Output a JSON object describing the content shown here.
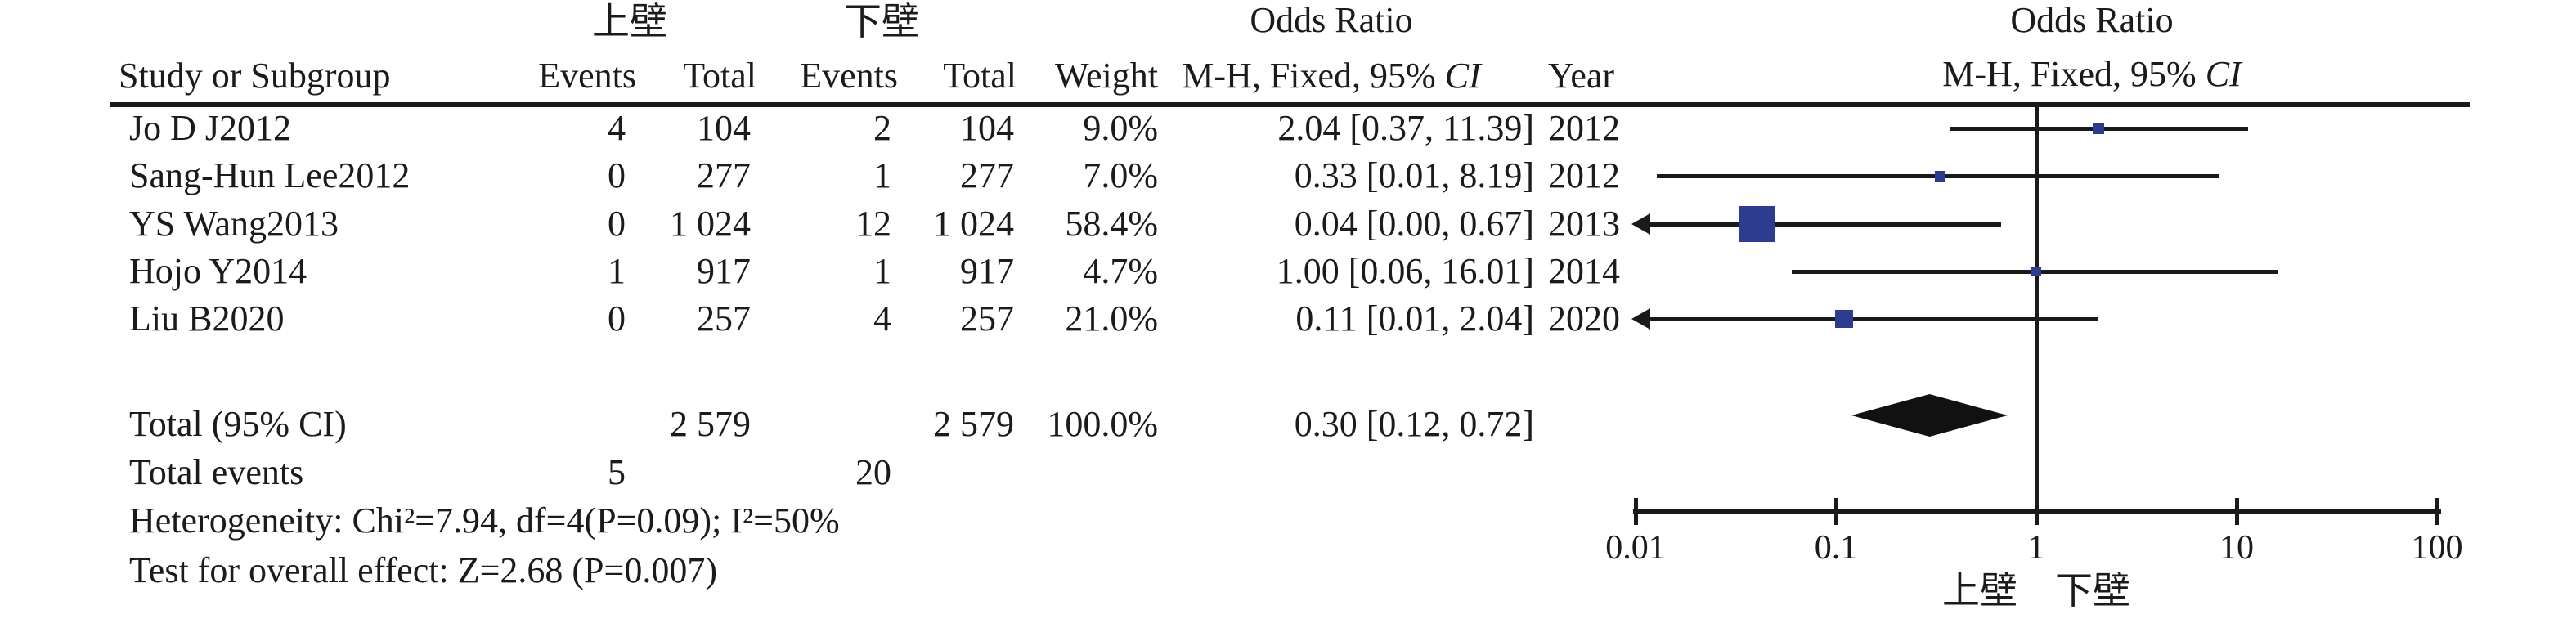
{
  "table": {
    "group_headers": {
      "experimental": "上壁",
      "control": "下壁",
      "or_left": "Odds Ratio",
      "or_right": "Odds Ratio"
    },
    "columns": {
      "study": "Study or Subgroup",
      "events1": "Events",
      "total1": "Total",
      "events2": "Events",
      "total2": "Total",
      "weight": "Weight",
      "mh_prefix": "M-H, Fixed, 95% ",
      "mh_ci": "CI",
      "year": "Year"
    },
    "rows": [
      {
        "name": "Jo D J2012",
        "e1": "4",
        "t1": "104",
        "e2": "2",
        "t2": "104",
        "weight": "9.0%",
        "or_ci": "2.04 [0.37, 11.39]",
        "year": "2012"
      },
      {
        "name": "Sang-Hun Lee2012",
        "e1": "0",
        "t1": "277",
        "e2": "1",
        "t2": "277",
        "weight": "7.0%",
        "or_ci": "0.33 [0.01, 8.19]",
        "year": "2012"
      },
      {
        "name": "YS Wang2013",
        "e1": "0",
        "t1": "1 024",
        "e2": "12",
        "t2": "1 024",
        "weight": "58.4%",
        "or_ci": "0.04 [0.00, 0.67]",
        "year": "2013"
      },
      {
        "name": "Hojo Y2014",
        "e1": "1",
        "t1": "917",
        "e2": "1",
        "t2": "917",
        "weight": "4.7%",
        "or_ci": "1.00 [0.06, 16.01]",
        "year": "2014"
      },
      {
        "name": "Liu B2020",
        "e1": "0",
        "t1": "257",
        "e2": "4",
        "t2": "257",
        "weight": "21.0%",
        "or_ci": "0.11 [0.01, 2.04]",
        "year": "2020"
      }
    ],
    "total_row": {
      "label": "Total (95% CI)",
      "t1": "2 579",
      "t2": "2 579",
      "weight": "100.0%",
      "or_ci": "0.30 [0.12, 0.72]"
    },
    "total_events": {
      "label": "Total events",
      "e1": "5",
      "e2": "20"
    },
    "heterogeneity": "Heterogeneity: Chi²=7.94, df=4(P=0.09); I²=50%",
    "overall_effect": "Test for overall effect: Z=2.68 (P=0.007)"
  },
  "chart_data": {
    "type": "forest",
    "effect_measure": "Odds Ratio, M-H, Fixed, 95% CI",
    "x_scale": "log10",
    "axis_range": [
      0.01,
      100
    ],
    "axis_ticks": [
      0.01,
      0.1,
      1,
      10,
      100
    ],
    "axis_tick_labels": [
      "0.01",
      "0.1",
      "1",
      "10",
      "100"
    ],
    "null_line": 1,
    "favours_left_label": "上壁",
    "favours_right_label": "下壁",
    "studies": [
      {
        "name": "Jo D J2012",
        "or": 2.04,
        "ci_low": 0.37,
        "ci_high": 11.39,
        "weight_pct": 9.0,
        "year": 2012,
        "arrow_left": false
      },
      {
        "name": "Sang-Hun Lee2012",
        "or": 0.33,
        "ci_low": 0.01,
        "ci_high": 8.19,
        "weight_pct": 7.0,
        "year": 2012,
        "arrow_left": false
      },
      {
        "name": "YS Wang2013",
        "or": 0.04,
        "ci_low": 0.0,
        "ci_high": 0.67,
        "weight_pct": 58.4,
        "year": 2013,
        "arrow_left": true
      },
      {
        "name": "Hojo Y2014",
        "or": 1.0,
        "ci_low": 0.06,
        "ci_high": 16.01,
        "weight_pct": 4.7,
        "year": 2014,
        "arrow_left": false
      },
      {
        "name": "Liu B2020",
        "or": 0.11,
        "ci_low": 0.01,
        "ci_high": 2.04,
        "weight_pct": 21.0,
        "year": 2020,
        "arrow_left": true
      }
    ],
    "total": {
      "label": "Total (95% CI)",
      "or": 0.3,
      "ci_low": 0.12,
      "ci_high": 0.72,
      "weight_pct": 100.0
    },
    "colors": {
      "marker": "#2e3c90",
      "line": "#1a1a1a",
      "diamond": "#111111"
    }
  }
}
